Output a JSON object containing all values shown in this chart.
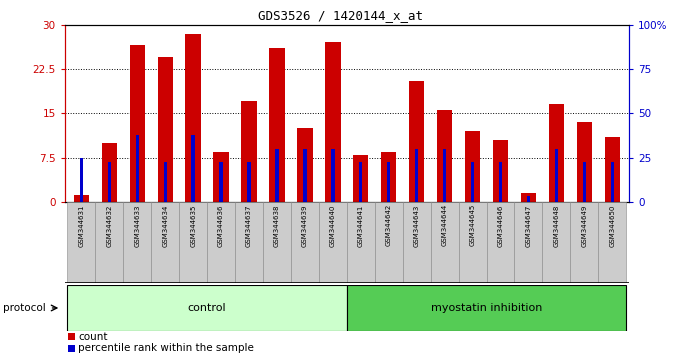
{
  "title": "GDS3526 / 1420144_x_at",
  "samples": [
    "GSM344631",
    "GSM344632",
    "GSM344633",
    "GSM344634",
    "GSM344635",
    "GSM344636",
    "GSM344637",
    "GSM344638",
    "GSM344639",
    "GSM344640",
    "GSM344641",
    "GSM344642",
    "GSM344643",
    "GSM344644",
    "GSM344645",
    "GSM344646",
    "GSM344647",
    "GSM344648",
    "GSM344649",
    "GSM344650"
  ],
  "counts": [
    1.2,
    10.0,
    26.5,
    24.5,
    28.5,
    8.5,
    17.0,
    26.0,
    12.5,
    27.0,
    8.0,
    8.5,
    20.5,
    15.5,
    12.0,
    10.5,
    1.5,
    16.5,
    13.5,
    11.0
  ],
  "percentiles": [
    25.0,
    22.5,
    37.5,
    22.5,
    37.5,
    22.5,
    22.5,
    30.0,
    30.0,
    30.0,
    22.5,
    22.5,
    30.0,
    30.0,
    22.5,
    22.5,
    3.5,
    30.0,
    22.5,
    22.5
  ],
  "bar_color": "#cc0000",
  "pct_color": "#0000cc",
  "left_ylim": [
    0,
    30
  ],
  "left_yticks": [
    0,
    7.5,
    15,
    22.5,
    30
  ],
  "left_yticklabels": [
    "0",
    "7.5",
    "15",
    "22.5",
    "30"
  ],
  "right_ylim": [
    0,
    100
  ],
  "right_yticks": [
    0,
    25,
    50,
    75,
    100
  ],
  "right_yticklabels": [
    "0",
    "25",
    "50",
    "75",
    "100%"
  ],
  "bg_color": "#ffffff",
  "control_bg": "#ccffcc",
  "myostatin_bg": "#55cc55",
  "xticklabel_bg": "#cccccc",
  "bar_width": 0.55,
  "pct_bar_width": 0.12
}
